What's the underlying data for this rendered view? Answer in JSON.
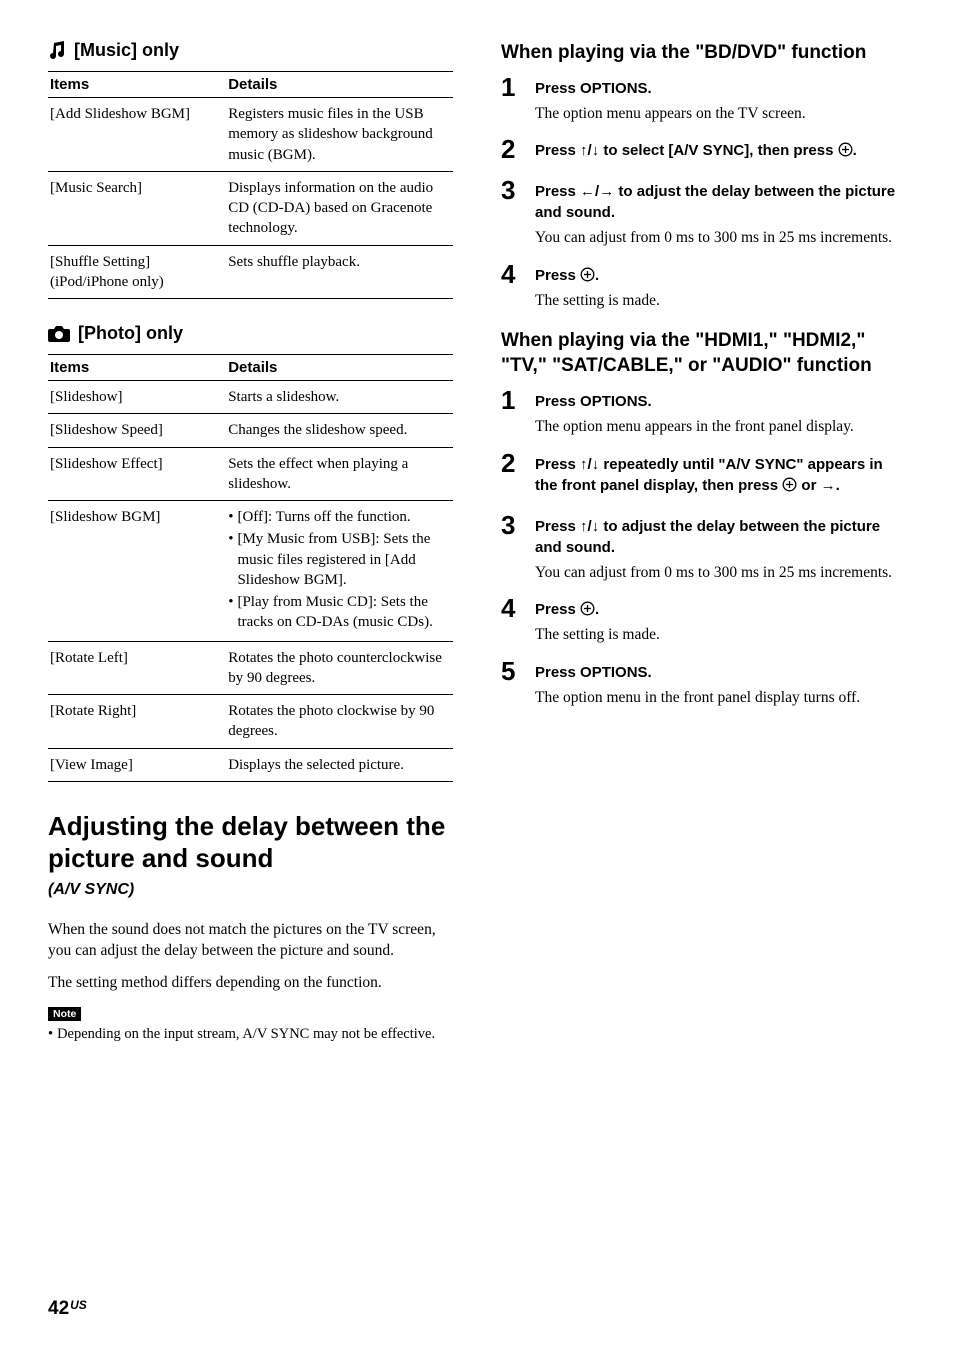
{
  "left": {
    "musicHeading": "[Music] only",
    "photoHeading": "[Photo] only",
    "tableHeaders": {
      "items": "Items",
      "details": "Details"
    },
    "musicRows": [
      {
        "item": "[Add Slideshow BGM]",
        "detail": "Registers music files in the USB memory as slideshow background music (BGM)."
      },
      {
        "item": "[Music Search]",
        "detail": "Displays information on the audio CD (CD-DA) based on Gracenote technology."
      },
      {
        "item": "[Shuffle Setting] (iPod/iPhone only)",
        "detail": "Sets shuffle playback."
      }
    ],
    "photoRows": [
      {
        "item": "[Slideshow]",
        "detail": "Starts a slideshow."
      },
      {
        "item": "[Slideshow Speed]",
        "detail": "Changes the slideshow speed."
      },
      {
        "item": "[Slideshow Effect]",
        "detail": "Sets the effect when playing a slideshow."
      },
      {
        "item": "[Slideshow BGM]",
        "bullets": [
          "[Off]: Turns off the function.",
          "[My Music from USB]: Sets the music files registered in [Add Slideshow BGM].",
          "[Play from Music CD]: Sets the tracks on CD-DAs (music CDs)."
        ]
      },
      {
        "item": "[Rotate Left]",
        "detail": "Rotates the photo counterclockwise by 90 degrees."
      },
      {
        "item": "[Rotate Right]",
        "detail": "Rotates the photo clockwise by 90 degrees."
      },
      {
        "item": "[View Image]",
        "detail": "Displays the selected picture."
      }
    ],
    "bigHeading": "Adjusting the delay between the picture and sound",
    "subHeading": "(A/V SYNC)",
    "para1": "When the sound does not match the pictures on the TV screen, you can adjust the delay between the picture and sound.",
    "para2": "The setting method differs depending on the function.",
    "noteLabel": "Note",
    "noteText": "Depending on the input stream, A/V SYNC may not be effective."
  },
  "right": {
    "heading1": "When playing via the \"BD/DVD\" function",
    "steps1": [
      {
        "n": "1",
        "instr": "Press OPTIONS.",
        "desc": "The option menu appears on the TV screen."
      },
      {
        "n": "2",
        "instrHtml": "Press <b>↑/↓</b> to select [A/V SYNC], then press ",
        "circ": true,
        "suffix": "."
      },
      {
        "n": "3",
        "instrHtml": "Press <b>←/→</b> to adjust the delay between the picture and sound.",
        "desc": "You can adjust from 0 ms to 300 ms in 25 ms increments."
      },
      {
        "n": "4",
        "instrHtml": "Press ",
        "circ": true,
        "suffix": ".",
        "desc": "The setting is made."
      }
    ],
    "heading2": "When playing via the \"HDMI1,\" \"HDMI2,\" \"TV,\" \"SAT/CABLE,\" or \"AUDIO\" function",
    "steps2": [
      {
        "n": "1",
        "instr": "Press OPTIONS.",
        "desc": "The option menu appears in the front panel display."
      },
      {
        "n": "2",
        "instrHtml": "Press <b>↑/↓</b> repeatedly until \"A/V SYNC\" appears in the front panel display, then press ",
        "circ": true,
        "suffix": " or →."
      },
      {
        "n": "3",
        "instrHtml": "Press <b>↑/↓</b> to adjust the delay between the picture and sound.",
        "desc": "You can adjust from 0 ms to 300 ms in 25 ms increments."
      },
      {
        "n": "4",
        "instrHtml": "Press ",
        "circ": true,
        "suffix": ".",
        "desc": "The setting is made."
      },
      {
        "n": "5",
        "instr": "Press OPTIONS.",
        "desc": "The option menu in the front panel display turns off."
      }
    ]
  },
  "page": {
    "num": "42",
    "sup": "US"
  }
}
